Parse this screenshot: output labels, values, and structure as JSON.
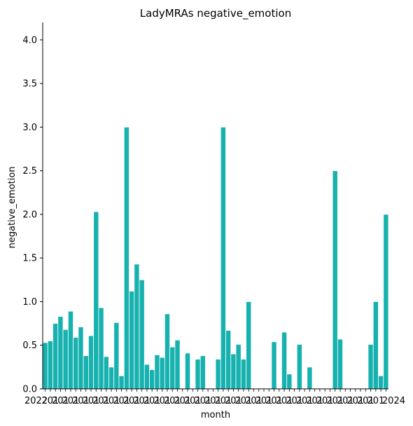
{
  "chart_data": {
    "type": "bar",
    "title": "LadyMRAs negative_emotion",
    "xlabel": "month",
    "ylabel": "negative_emotion",
    "ylim": [
      0,
      4.2
    ],
    "yticks": [
      "0.0",
      "0.5",
      "1.0",
      "1.5",
      "2.0",
      "2.5",
      "3.0",
      "3.5",
      "4.0"
    ],
    "ytick_values": [
      0,
      0.5,
      1.0,
      1.5,
      2.0,
      2.5,
      3.0,
      3.5,
      4.0
    ],
    "bar_color": "#17b2b0",
    "x_tick_label_first": "2022",
    "x_tick_label_last": "2024",
    "x_tick_label_middle": "201",
    "values": [
      0.53,
      0.55,
      0.75,
      0.83,
      0.68,
      0.89,
      0.59,
      0.71,
      0.38,
      0.61,
      2.03,
      0.93,
      0.37,
      0.25,
      0.76,
      0.15,
      3.0,
      1.12,
      1.43,
      1.25,
      0.28,
      0.22,
      0.39,
      0.36,
      0.86,
      0.48,
      0.56,
      0,
      0.41,
      0,
      0.34,
      0.38,
      0,
      0,
      0.34,
      3.0,
      0.67,
      0.4,
      0.51,
      0.34,
      1.0,
      0,
      0,
      0,
      0,
      0.54,
      0,
      0.65,
      0.17,
      0,
      0.51,
      0,
      0.25,
      0,
      0,
      0,
      0,
      2.5,
      0.57,
      0,
      0,
      0,
      0,
      0,
      0.51,
      1.0,
      0.15,
      2.0
    ]
  }
}
